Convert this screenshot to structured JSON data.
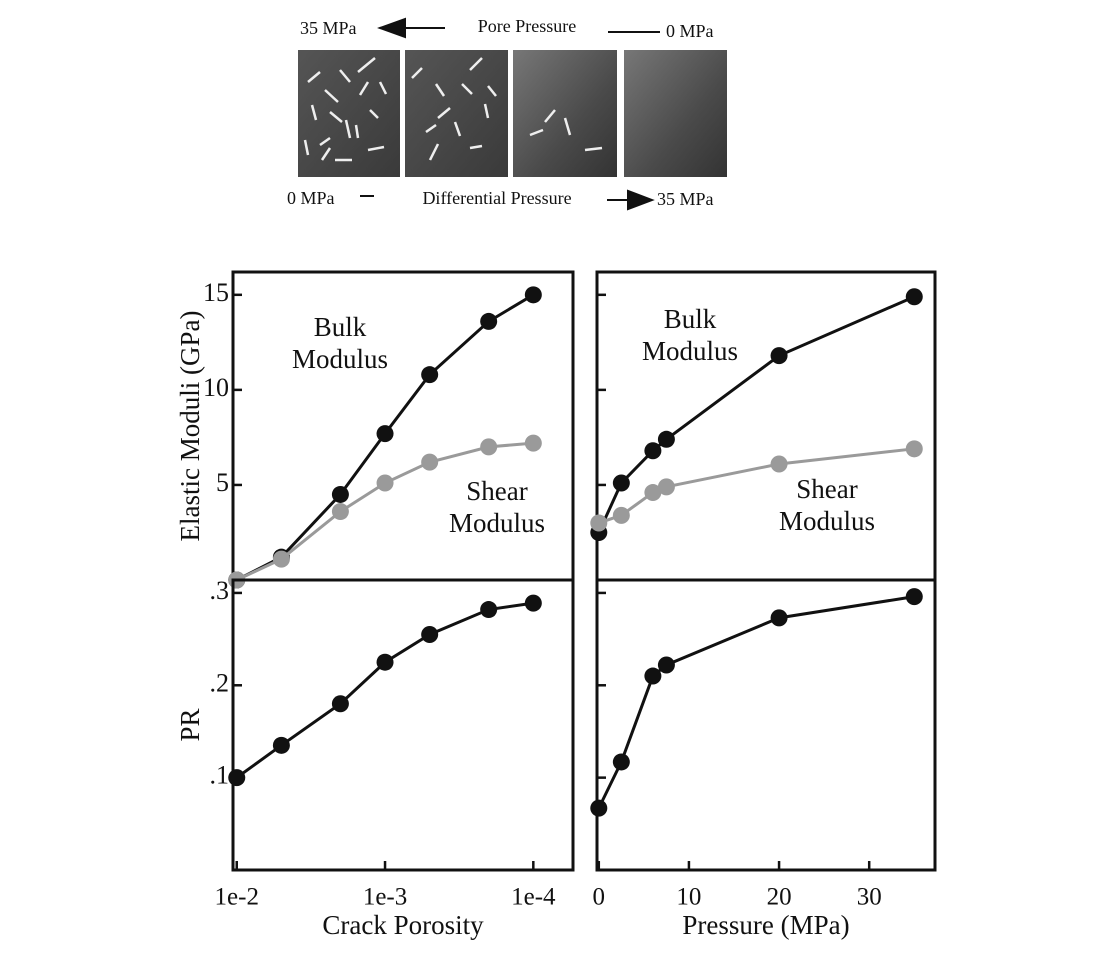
{
  "strip": {
    "pore_left": "35 MPa",
    "pore_label": "Pore Pressure",
    "pore_right": "0 MPa",
    "diff_left": "0 MPa",
    "diff_label": "Differential Pressure",
    "diff_right": "35 MPa"
  },
  "chart_data": [
    {
      "type": "line",
      "ylabel": "Elastic Moduli (GPa)",
      "xscale": "log",
      "xlim": [
        0.0106,
        5.4e-05
      ],
      "ylim": [
        0,
        16.2
      ],
      "yticks": [
        5,
        10,
        15
      ],
      "x": [
        0.01,
        0.005,
        0.002,
        0.001,
        0.0005,
        0.0002,
        0.0001
      ],
      "series": [
        {
          "color": "#111111",
          "values": [
            0,
            1.2,
            4.5,
            7.7,
            10.8,
            13.6,
            15.0
          ]
        },
        {
          "color": "#9a9a9a",
          "values": [
            0,
            1.1,
            3.6,
            5.1,
            6.2,
            7.0,
            7.2
          ]
        }
      ],
      "annotations": [
        {
          "lines": [
            "Bulk",
            "Modulus"
          ]
        },
        {
          "lines": [
            "Shear",
            "Modulus"
          ]
        }
      ]
    },
    {
      "type": "line",
      "xlim": [
        -0.2,
        37.3
      ],
      "ylim": [
        0,
        16.2
      ],
      "yticks": [
        5,
        10,
        15
      ],
      "ytick_labels": false,
      "x": [
        0,
        2.5,
        6,
        7.5,
        20,
        35
      ],
      "series": [
        {
          "color": "#111111",
          "values": [
            2.5,
            5.1,
            6.8,
            7.4,
            11.8,
            14.9
          ]
        },
        {
          "color": "#9a9a9a",
          "values": [
            3.0,
            3.4,
            4.6,
            4.9,
            6.1,
            6.9
          ]
        }
      ],
      "annotations": [
        {
          "lines": [
            "Bulk",
            "Modulus"
          ]
        },
        {
          "lines": [
            "Shear",
            "Modulus"
          ]
        }
      ]
    },
    {
      "type": "line",
      "ylabel": "PR",
      "xlabel": "Crack Porosity",
      "xscale": "log",
      "xlim": [
        0.0106,
        5.4e-05
      ],
      "ylim": [
        0,
        0.314
      ],
      "yticks": [
        {
          "value": 0.1,
          "label": ".1"
        },
        {
          "value": 0.2,
          "label": ".2"
        },
        {
          "value": 0.3,
          "label": ".3"
        }
      ],
      "xticks": [
        {
          "value": 0.01,
          "label": "1e-2"
        },
        {
          "value": 0.001,
          "label": "1e-3"
        },
        {
          "value": 0.0001,
          "label": "1e-4"
        }
      ],
      "x": [
        0.01,
        0.005,
        0.002,
        0.001,
        0.0005,
        0.0002,
        0.0001
      ],
      "series": [
        {
          "color": "#111111",
          "values": [
            0.1,
            0.135,
            0.18,
            0.225,
            0.255,
            0.282,
            0.289
          ]
        }
      ]
    },
    {
      "type": "line",
      "xlabel": "Pressure (MPa)",
      "xlim": [
        -0.2,
        37.3
      ],
      "ylim": [
        0,
        0.314
      ],
      "yticks": [
        0.1,
        0.2,
        0.3
      ],
      "ytick_labels": false,
      "xticks": [
        0,
        10,
        20,
        30
      ],
      "x": [
        0,
        2.5,
        6,
        7.5,
        20,
        35
      ],
      "series": [
        {
          "color": "#111111",
          "values": [
            0.067,
            0.117,
            0.21,
            0.222,
            0.273,
            0.296
          ]
        }
      ]
    }
  ]
}
